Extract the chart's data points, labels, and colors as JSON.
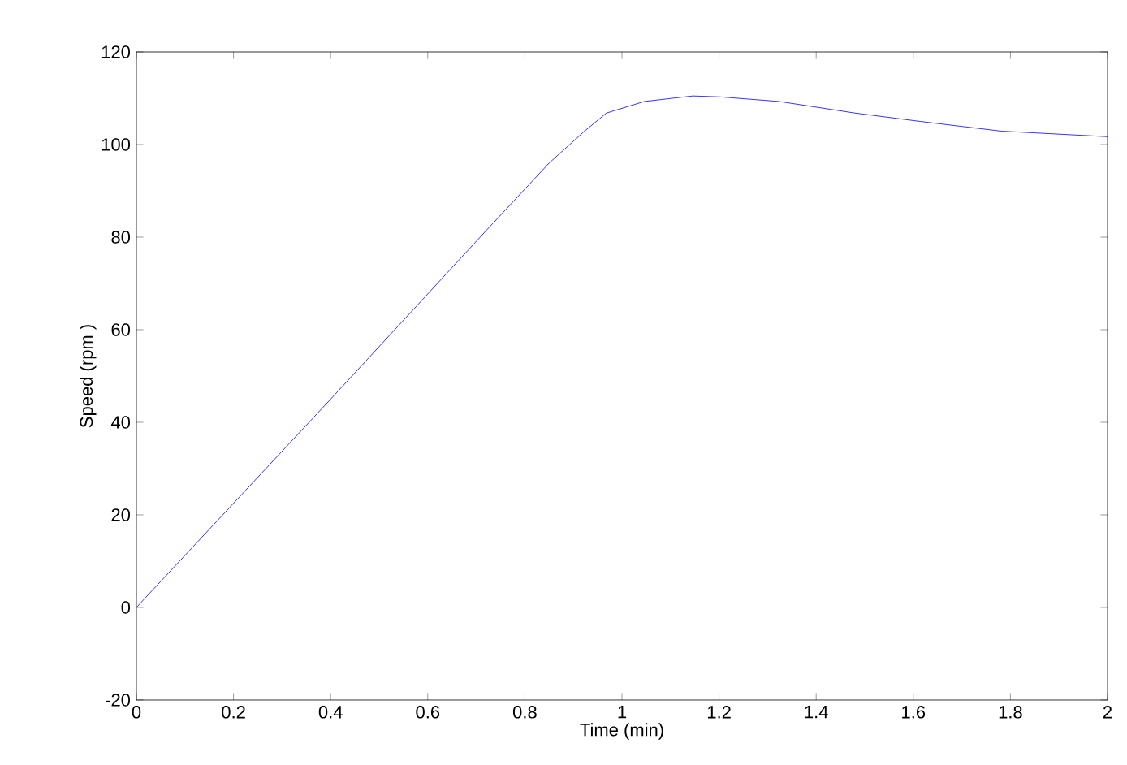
{
  "chart_data": {
    "type": "line",
    "xlabel": "Time (min)",
    "ylabel": "Speed (rpm )",
    "x": [
      0,
      0.4,
      0.722,
      0.85,
      0.923,
      0.968,
      1.046,
      1.146,
      1.202,
      1.324,
      1.48,
      1.614,
      1.781,
      2.0
    ],
    "values": [
      0,
      45,
      81.6,
      96,
      102.9,
      106.8,
      109.3,
      110.5,
      110.3,
      109.3,
      106.8,
      105,
      102.9,
      101.7
    ],
    "color": "#0000ff",
    "xlim": [
      0,
      2
    ],
    "ylim": [
      -20,
      120
    ],
    "xticks": [
      0,
      0.2,
      0.4,
      0.6,
      0.8,
      1,
      1.2,
      1.4,
      1.6,
      1.8,
      2
    ],
    "yticks": [
      -20,
      0,
      20,
      40,
      60,
      80,
      100,
      120
    ],
    "grid": false
  }
}
